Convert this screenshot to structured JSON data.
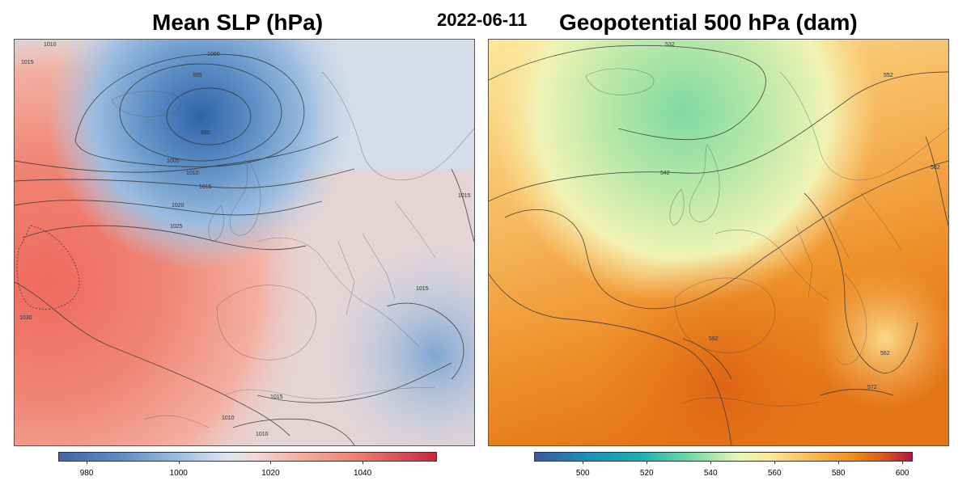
{
  "date": "2022-06-11",
  "left_panel": {
    "title": "Mean SLP (hPa)",
    "contour_labels": [
      "1015",
      "1010",
      "1000",
      "995",
      "990",
      "1005",
      "1010",
      "1015",
      "1020",
      "1025",
      "1030",
      "1015",
      "1015",
      "1010",
      "1010",
      "1015"
    ],
    "colorbar": {
      "ticks": [
        "980",
        "1000",
        "1020",
        "1040"
      ],
      "range": [
        974,
        1056
      ],
      "colors": [
        "#3f66a6",
        "#dde6f0",
        "#c8243e"
      ]
    }
  },
  "right_panel": {
    "title": "Geopotential 500 hPa (dam)",
    "contour_labels": [
      "532",
      "552",
      "542",
      "562",
      "582",
      "562",
      "572"
    ],
    "colorbar": {
      "ticks": [
        "500",
        "520",
        "540",
        "560",
        "580",
        "600"
      ],
      "range": [
        485,
        603
      ],
      "colors": [
        "#3c5a9c",
        "#79dba3",
        "#fde89a",
        "#f0901b",
        "#b5123f"
      ]
    }
  }
}
